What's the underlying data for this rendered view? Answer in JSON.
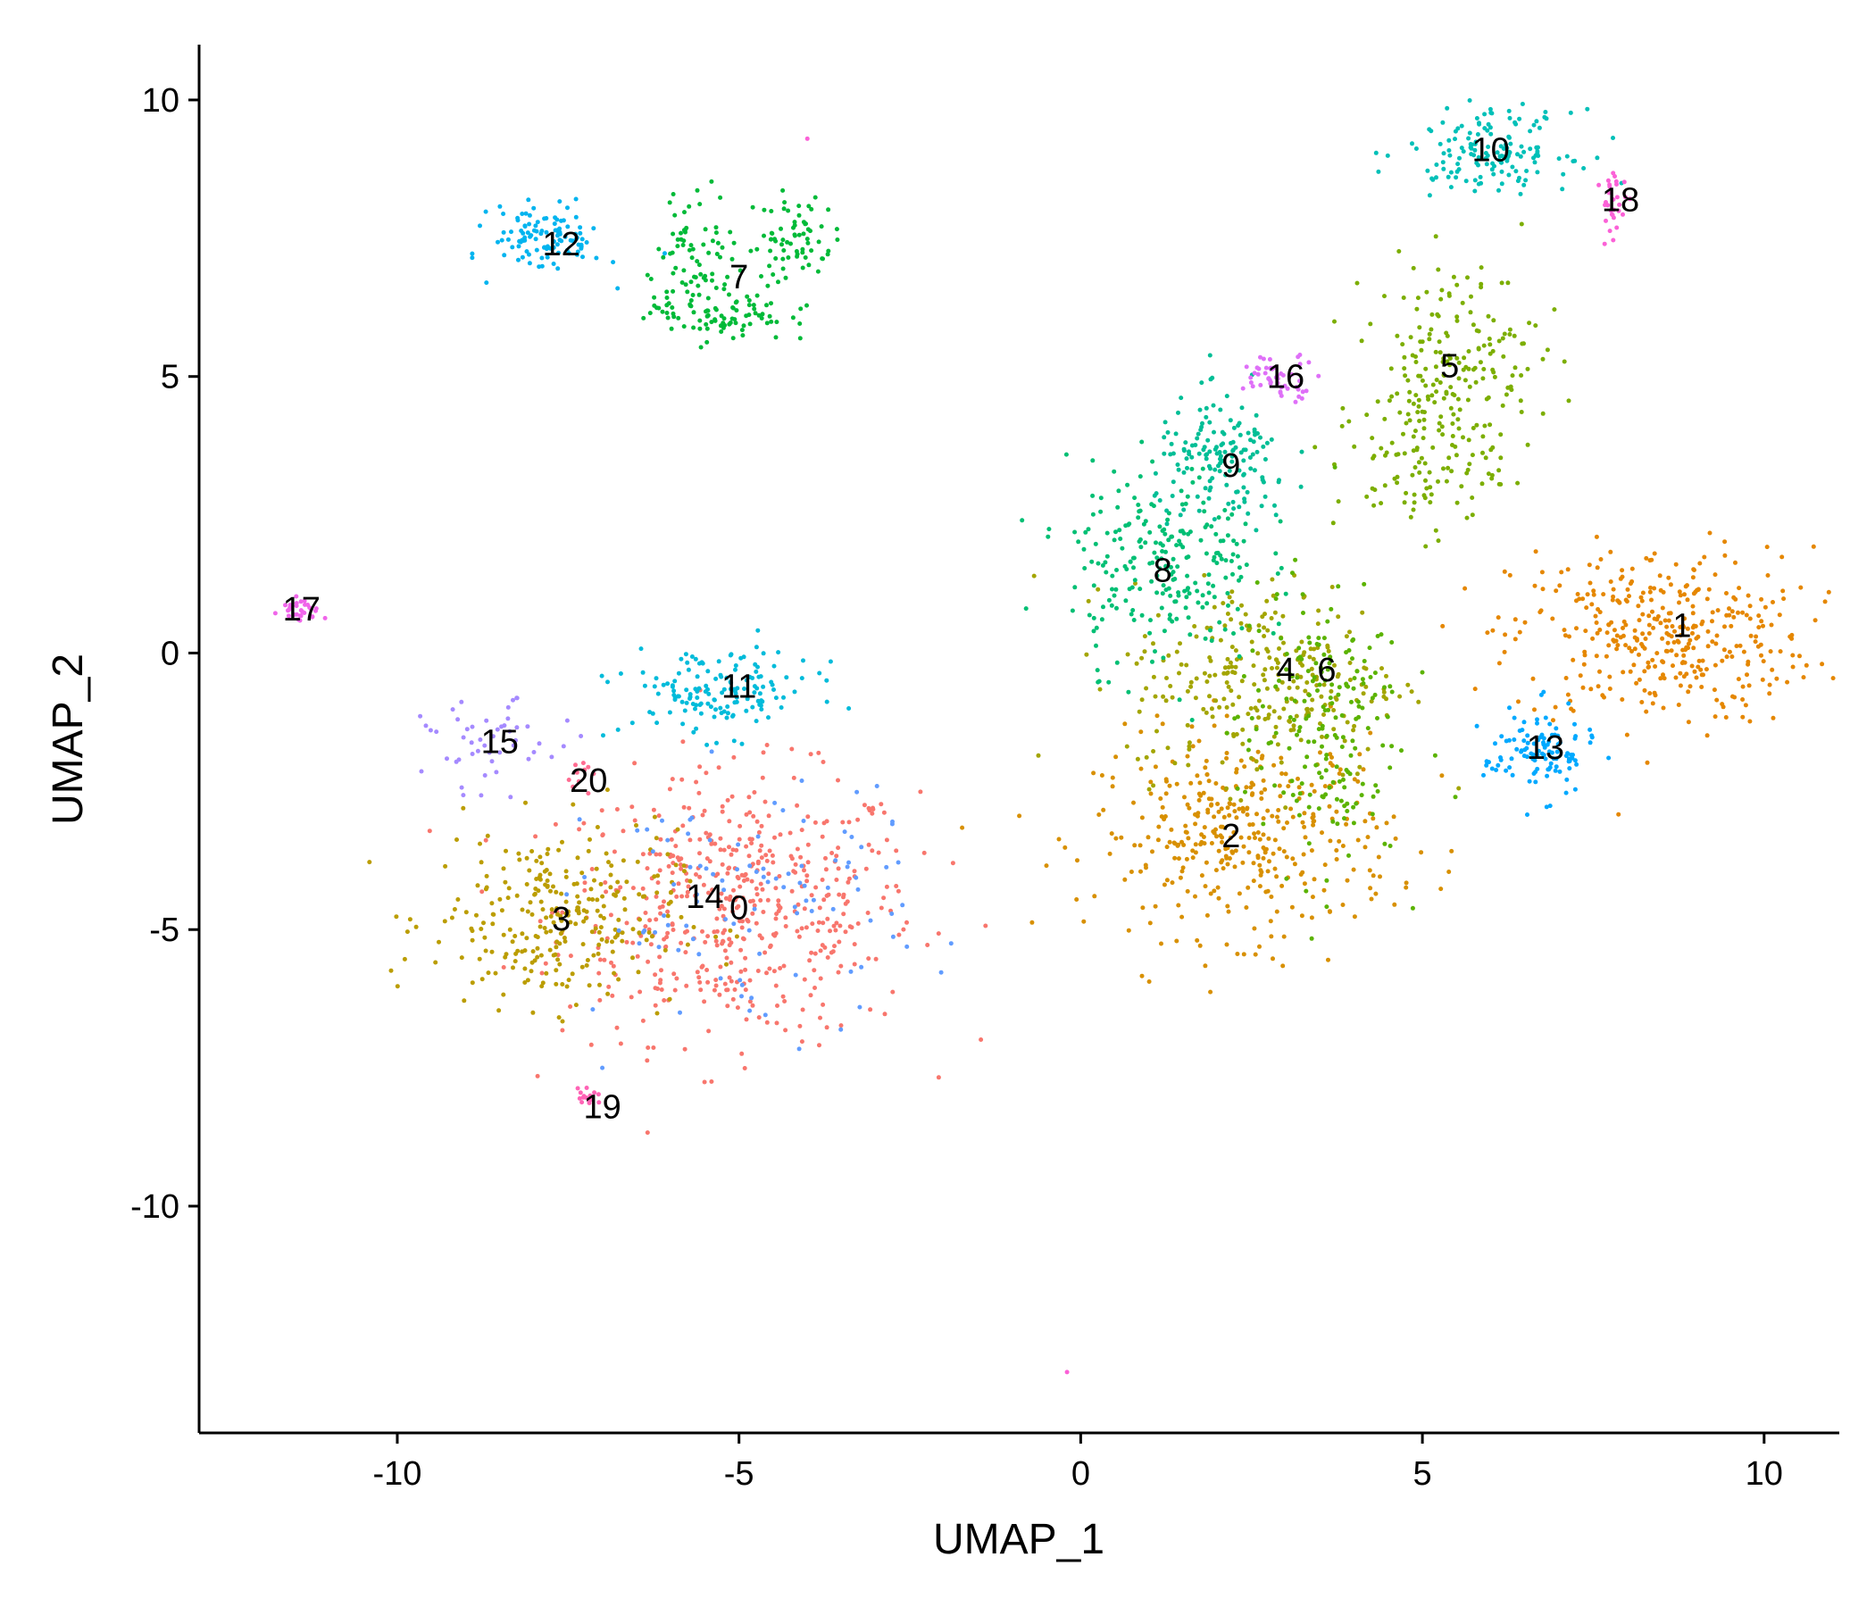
{
  "chart_data": {
    "type": "scatter",
    "xlabel": "UMAP_1",
    "ylabel": "UMAP_2",
    "xlim": [
      -12.9,
      11.1
    ],
    "ylim": [
      -14.1,
      11.0
    ],
    "x_ticks": [
      -10,
      -5,
      0,
      5,
      10
    ],
    "y_ticks": [
      10,
      5,
      0,
      -5,
      -10
    ],
    "x_tick_labels": [
      "-10",
      "-5",
      "0",
      "5",
      "10"
    ],
    "y_tick_labels": [
      "10",
      "5",
      "0",
      "-5",
      "-10"
    ],
    "grid": false,
    "legend": "none",
    "point_size": 2.5,
    "clusters": [
      {
        "label": "0",
        "color": "#F8766D",
        "label_x": -5.0,
        "label_y": -4.6,
        "blobs": [
          {
            "x": -5.0,
            "y": -4.6,
            "sx": 1.3,
            "sy": 1.2,
            "n": 520
          }
        ]
      },
      {
        "label": "1",
        "color": "#E58700",
        "label_x": 8.8,
        "label_y": 0.5,
        "blobs": [
          {
            "x": 8.5,
            "y": 0.3,
            "sx": 1.1,
            "sy": 0.8,
            "n": 380
          }
        ]
      },
      {
        "label": "2",
        "color": "#D89000",
        "label_x": 2.2,
        "label_y": -3.3,
        "blobs": [
          {
            "x": 2.4,
            "y": -3.3,
            "sx": 1.1,
            "sy": 0.9,
            "n": 380
          }
        ]
      },
      {
        "label": "3",
        "color": "#BB9D00",
        "label_x": -7.6,
        "label_y": -4.8,
        "blobs": [
          {
            "x": -7.7,
            "y": -4.8,
            "sx": 0.9,
            "sy": 0.8,
            "n": 280
          }
        ]
      },
      {
        "label": "4",
        "color": "#A3A500",
        "label_x": 3.0,
        "label_y": -0.3,
        "blobs": [
          {
            "x": 2.7,
            "y": -0.5,
            "sx": 1.0,
            "sy": 0.9,
            "n": 280
          }
        ]
      },
      {
        "label": "5",
        "color": "#7CAE00",
        "label_x": 5.4,
        "label_y": 5.2,
        "blobs": [
          {
            "x": 5.5,
            "y": 5.3,
            "sx": 0.6,
            "sy": 0.9,
            "n": 180
          },
          {
            "x": 4.9,
            "y": 3.5,
            "sx": 0.6,
            "sy": 0.7,
            "n": 100
          }
        ]
      },
      {
        "label": "6",
        "color": "#5BB300",
        "label_x": 3.6,
        "label_y": -0.3,
        "blobs": [
          {
            "x": 3.5,
            "y": -1.3,
            "sx": 0.6,
            "sy": 1.3,
            "n": 200
          }
        ]
      },
      {
        "label": "7",
        "color": "#00BA38",
        "label_x": -5.0,
        "label_y": 6.8,
        "blobs": [
          {
            "x": -5.3,
            "y": 6.2,
            "sx": 0.5,
            "sy": 0.3,
            "n": 100
          },
          {
            "x": -5.6,
            "y": 7.4,
            "sx": 0.3,
            "sy": 0.5,
            "n": 60
          },
          {
            "x": -4.2,
            "y": 7.5,
            "sx": 0.3,
            "sy": 0.4,
            "n": 70
          }
        ]
      },
      {
        "label": "8",
        "color": "#00BF74",
        "label_x": 1.2,
        "label_y": 1.5,
        "blobs": [
          {
            "x": 1.2,
            "y": 1.6,
            "sx": 0.7,
            "sy": 0.9,
            "n": 240
          }
        ]
      },
      {
        "label": "9",
        "color": "#00BE96",
        "label_x": 2.2,
        "label_y": 3.4,
        "blobs": [
          {
            "x": 2.1,
            "y": 3.4,
            "sx": 0.5,
            "sy": 0.6,
            "n": 150
          }
        ]
      },
      {
        "label": "10",
        "color": "#00C0B8",
        "label_x": 6.0,
        "label_y": 9.1,
        "blobs": [
          {
            "x": 6.0,
            "y": 9.1,
            "sx": 0.6,
            "sy": 0.35,
            "n": 150
          }
        ]
      },
      {
        "label": "11",
        "color": "#00BBDA",
        "label_x": -5.0,
        "label_y": -0.6,
        "blobs": [
          {
            "x": -5.3,
            "y": -0.7,
            "sx": 0.7,
            "sy": 0.4,
            "n": 150
          }
        ]
      },
      {
        "label": "12",
        "color": "#00B4EF",
        "label_x": -7.6,
        "label_y": 7.4,
        "blobs": [
          {
            "x": -7.8,
            "y": 7.5,
            "sx": 0.4,
            "sy": 0.3,
            "n": 110
          }
        ]
      },
      {
        "label": "13",
        "color": "#00A9FF",
        "label_x": 6.8,
        "label_y": -1.7,
        "blobs": [
          {
            "x": 6.7,
            "y": -1.8,
            "sx": 0.4,
            "sy": 0.4,
            "n": 110
          }
        ]
      },
      {
        "label": "14",
        "color": "#619CFF",
        "label_x": -5.5,
        "label_y": -4.4,
        "blobs": [
          {
            "x": -4.8,
            "y": -4.5,
            "sx": 1.2,
            "sy": 1.1,
            "n": 100
          }
        ]
      },
      {
        "label": "15",
        "color": "#A58AFF",
        "label_x": -8.5,
        "label_y": -1.6,
        "blobs": [
          {
            "x": -8.6,
            "y": -1.7,
            "sx": 0.5,
            "sy": 0.4,
            "n": 50
          }
        ]
      },
      {
        "label": "16",
        "color": "#DF70F8",
        "label_x": 3.0,
        "label_y": 5.0,
        "blobs": [
          {
            "x": 2.9,
            "y": 5.0,
            "sx": 0.3,
            "sy": 0.2,
            "n": 50
          }
        ]
      },
      {
        "label": "17",
        "color": "#F066EA",
        "label_x": -11.4,
        "label_y": 0.8,
        "blobs": [
          {
            "x": -11.4,
            "y": 0.8,
            "sx": 0.15,
            "sy": 0.12,
            "n": 30
          }
        ]
      },
      {
        "label": "18",
        "color": "#FB61D7",
        "label_x": 7.9,
        "label_y": 8.2,
        "blobs": [
          {
            "x": 7.8,
            "y": 8.1,
            "sx": 0.1,
            "sy": 0.3,
            "n": 30
          }
        ]
      },
      {
        "label": "19",
        "color": "#FF63B6",
        "label_x": -7.0,
        "label_y": -8.2,
        "blobs": [
          {
            "x": -7.2,
            "y": -8.0,
            "sx": 0.1,
            "sy": 0.1,
            "n": 15
          }
        ]
      },
      {
        "label": "20",
        "color": "#FF6C91",
        "label_x": -7.2,
        "label_y": -2.3,
        "blobs": [
          {
            "x": -7.3,
            "y": -2.2,
            "sx": 0.15,
            "sy": 0.15,
            "n": 10
          }
        ]
      }
    ],
    "outlier_points": [
      {
        "x": -0.2,
        "y": -13.0,
        "color": "#FB61D7"
      },
      {
        "x": -4.0,
        "y": 9.3,
        "color": "#FB61D7"
      },
      {
        "x": -7.0,
        "y": -7.5,
        "color": "#619CFF"
      }
    ]
  }
}
